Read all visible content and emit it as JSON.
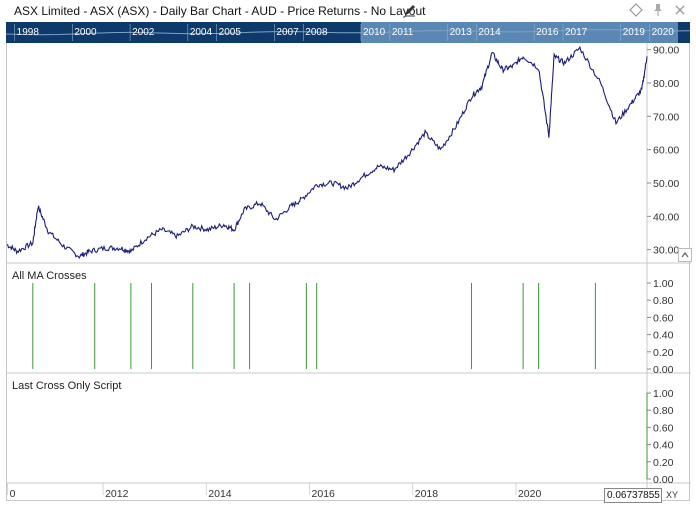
{
  "window": {
    "title": "ASX Limited - ASX (ASX) - Daily Bar Chart - AUD - Price Returns - No Layout"
  },
  "toolbar_icons": [
    "diamond-icon",
    "pin-icon",
    "close-icon"
  ],
  "navigator": {
    "years": [
      "1998",
      "2000",
      "2002",
      "2004",
      "2005",
      "2007",
      "2008",
      "2010",
      "2011",
      "2013",
      "2014",
      "2016",
      "2017",
      "2019",
      "2020"
    ],
    "window_start": "2010",
    "window_end": "2021",
    "colors": {
      "background": "#0d3a6a",
      "window": "#5a87b3",
      "text": "#ffffff"
    }
  },
  "panes": [
    {
      "label": "",
      "ticks": [
        "30.00",
        "40.00",
        "50.00",
        "60.00",
        "70.00",
        "80.00",
        "90.00"
      ]
    },
    {
      "label": "All MA Crosses",
      "ticks": [
        "0.00",
        "0.20",
        "0.40",
        "0.60",
        "0.80",
        "1.00"
      ]
    },
    {
      "label": "Last Cross Only Script",
      "ticks": [
        "0.00",
        "0.20",
        "0.40",
        "0.60",
        "0.80",
        "1.00"
      ]
    }
  ],
  "x_axis": {
    "labels": [
      "0",
      "2012",
      "2014",
      "2016",
      "2018",
      "2020"
    ]
  },
  "cursor_readout": "0.06737855",
  "xy_button": "XY",
  "chart_data": [
    {
      "type": "line",
      "title": "",
      "xlabel": "",
      "ylabel": "",
      "x": [
        2010.4,
        2010.6,
        2010.9,
        2011.0,
        2011.2,
        2011.5,
        2011.8,
        2012.0,
        2012.3,
        2012.6,
        2012.8,
        2013.1,
        2013.4,
        2013.7,
        2014.0,
        2014.3,
        2014.6,
        2014.8,
        2015.0,
        2015.3,
        2015.6,
        2015.9,
        2016.1,
        2016.4,
        2016.7,
        2017.0,
        2017.3,
        2017.6,
        2017.9,
        2018.2,
        2018.5,
        2018.8,
        2019.1,
        2019.4,
        2019.6,
        2019.8,
        2020.0,
        2020.2,
        2020.4,
        2020.7,
        2020.9,
        2021.0,
        2021.2,
        2021.5,
        2021.9,
        2022.2,
        2022.5,
        2022.7,
        2022.8
      ],
      "values": [
        31.5,
        29.5,
        32.0,
        43.0,
        35.5,
        31.0,
        28.0,
        29.5,
        30.5,
        30.5,
        29.5,
        33.5,
        36.0,
        34.0,
        37.0,
        36.0,
        37.5,
        36.0,
        42.0,
        44.0,
        39.0,
        43.0,
        45.0,
        49.5,
        50.0,
        48.5,
        52.0,
        55.0,
        54.0,
        59.0,
        65.0,
        60.0,
        67.0,
        76.0,
        79.0,
        89.0,
        84.0,
        85.0,
        88.0,
        84.5,
        64.0,
        88.0,
        86.0,
        90.5,
        80.0,
        68.0,
        74.0,
        78.0,
        88.0
      ],
      "ylim": [
        26,
        92
      ],
      "xlim": [
        2010.4,
        2022.8
      ],
      "series_color": "#1c1c7a",
      "grid": false
    },
    {
      "type": "bar",
      "title": "All MA Crosses",
      "x": [
        2010.9,
        2012.1,
        2012.8,
        2013.2,
        2014.0,
        2014.8,
        2015.1,
        2016.2,
        2016.4,
        2019.4,
        2020.4,
        2020.7,
        2021.8
      ],
      "values": [
        1,
        1,
        1,
        1,
        1,
        1,
        1,
        1,
        1,
        1,
        1,
        1,
        1
      ],
      "ylim": [
        0,
        1
      ],
      "xlim": [
        2010.4,
        2022.8
      ],
      "series_color": "#3a9a3a",
      "grid": false
    },
    {
      "type": "bar",
      "title": "Last Cross Only Script",
      "x": [
        2022.8
      ],
      "values": [
        1
      ],
      "ylim": [
        0,
        1
      ],
      "xlim": [
        2010.4,
        2022.8
      ],
      "series_color": "#3a9a3a",
      "grid": false
    }
  ]
}
